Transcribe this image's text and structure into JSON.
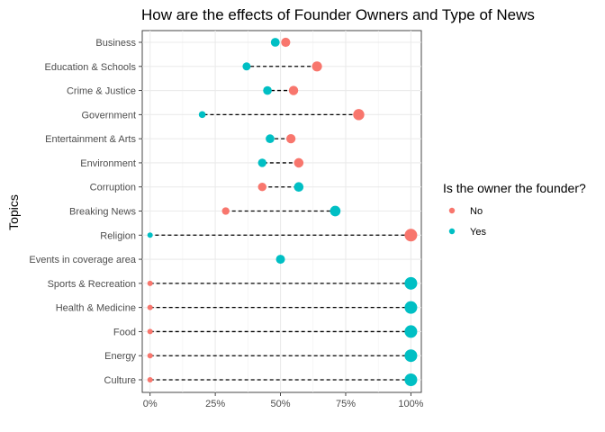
{
  "chart_data": {
    "type": "dumbbell",
    "title": "How are the effects of Founder Owners and Type of News",
    "xlabel": "",
    "ylabel": "Topics",
    "xlim": [
      -0.03,
      1.04
    ],
    "x_ticks": [
      0,
      0.25,
      0.5,
      0.75,
      1.0
    ],
    "x_tick_labels": [
      "0%",
      "25%",
      "50%",
      "75%",
      "100%"
    ],
    "grid": true,
    "legend": {
      "title": "Is the owner the founder?",
      "placement": "right",
      "entries": [
        {
          "label": "No",
          "color": "#F8766D"
        },
        {
          "label": "Yes",
          "color": "#00BFC4"
        }
      ]
    },
    "categories": [
      "Business",
      "Education & Schools",
      "Crime & Justice",
      "Government",
      "Entertainment & Arts",
      "Environment",
      "Corruption",
      "Breaking News",
      "Religion",
      "Events in coverage area",
      "Sports & Recreation",
      "Health & Medicine",
      "Food",
      "Energy",
      "Culture"
    ],
    "series": [
      {
        "name": "No",
        "color": "#F8766D",
        "values": [
          0.52,
          0.64,
          0.55,
          0.8,
          0.54,
          0.57,
          0.43,
          0.29,
          1.0,
          null,
          0.0,
          0.0,
          0.0,
          0.0,
          0.0
        ]
      },
      {
        "name": "Yes",
        "color": "#00BFC4",
        "values": [
          0.48,
          0.37,
          0.45,
          0.2,
          0.46,
          0.43,
          0.57,
          0.71,
          0.0,
          0.5,
          1.0,
          1.0,
          1.0,
          1.0,
          1.0
        ]
      }
    ]
  }
}
